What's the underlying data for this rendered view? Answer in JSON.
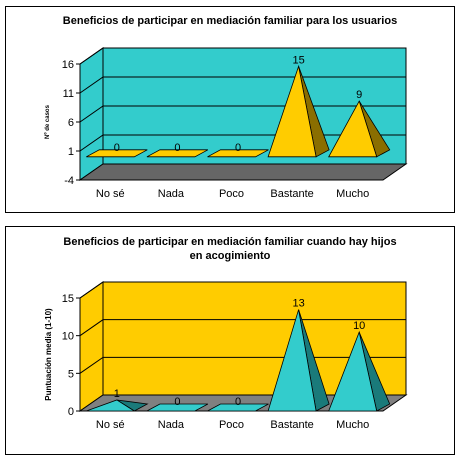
{
  "chart_data": [
    {
      "type": "bar",
      "style": "3d-pyramid",
      "title": "Beneficios de participar en mediación familiar para los usuarios",
      "ylabel": "Nº de casos",
      "xlabel": "",
      "categories": [
        "No sé",
        "Nada",
        "Poco",
        "Bastante",
        "Mucho"
      ],
      "values": [
        0,
        0,
        0,
        15,
        9
      ],
      "data_labels": [
        "0",
        "0",
        "0",
        "15",
        "9"
      ],
      "yticks": [
        -4,
        1,
        6,
        11,
        16
      ],
      "ylim": [
        -4,
        16
      ],
      "grid": true,
      "legend": "none",
      "colors": {
        "wall": "#33CCCC",
        "floor": "#666666",
        "bar": "#FFCC00",
        "bar_side": "#8A6E00"
      }
    },
    {
      "type": "bar",
      "style": "3d-pyramid",
      "title": "Beneficios de participar en mediación familiar cuando hay hijos en acogimiento",
      "title_lines": [
        "Beneficios de participar en mediación familiar cuando hay hijos",
        "en acogimiento"
      ],
      "ylabel": "Puntuación media (1-10)",
      "xlabel": "",
      "categories": [
        "No sé",
        "Nada",
        "Poco",
        "Bastante",
        "Mucho"
      ],
      "values": [
        1,
        0,
        0,
        13,
        10
      ],
      "data_labels": [
        "1",
        "0",
        "0",
        "13",
        "10"
      ],
      "yticks": [
        0,
        5,
        10,
        15
      ],
      "ylim": [
        0,
        15
      ],
      "grid": true,
      "legend": "none",
      "colors": {
        "wall": "#FFCC00",
        "floor": "#808080",
        "bar": "#33CCCC",
        "bar_side": "#1A7A7A"
      }
    }
  ]
}
